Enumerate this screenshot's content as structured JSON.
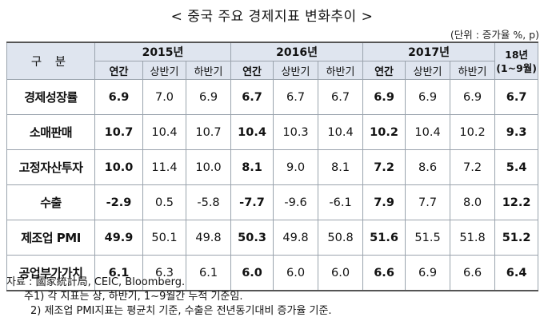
{
  "title": "< 중국 주요 경제지표 변화추이 >",
  "unit": "(단위 : 증가율 %, p)",
  "header": {
    "gubun": "구 분",
    "years": [
      "2015년",
      "2016년",
      "2017년"
    ],
    "ytd_line1": "18년",
    "ytd_line2": "(1~9월)",
    "annual": "연간",
    "h1": "상반기",
    "h2": "하반기"
  },
  "rows": [
    {
      "label": "경제성장률",
      "values": [
        "6.9",
        "7.0",
        "6.9",
        "6.7",
        "6.7",
        "6.7",
        "6.9",
        "6.9",
        "6.9",
        "6.7"
      ]
    },
    {
      "label": "소매판매",
      "values": [
        "10.7",
        "10.4",
        "10.7",
        "10.4",
        "10.3",
        "10.4",
        "10.2",
        "10.4",
        "10.2",
        "9.3"
      ]
    },
    {
      "label": "고정자산투자",
      "values": [
        "10.0",
        "11.4",
        "10.0",
        "8.1",
        "9.0",
        "8.1",
        "7.2",
        "8.6",
        "7.2",
        "5.4"
      ]
    },
    {
      "label": "수출",
      "values": [
        "-2.9",
        "0.5",
        "-5.8",
        "-7.7",
        "-9.6",
        "-6.1",
        "7.9",
        "7.7",
        "8.0",
        "12.2"
      ]
    },
    {
      "label": "제조업 PMI",
      "values": [
        "49.9",
        "50.1",
        "49.8",
        "50.3",
        "49.8",
        "50.8",
        "51.6",
        "51.5",
        "51.8",
        "51.2"
      ]
    },
    {
      "label": "공업부가가치",
      "values": [
        "6.1",
        "6.3",
        "6.1",
        "6.0",
        "6.0",
        "6.0",
        "6.6",
        "6.9",
        "6.6",
        "6.4"
      ]
    }
  ],
  "notes": {
    "source": "자료 : 國家統計局, CEIC, Bloomberg.",
    "note1": "주1) 각 지표는 상, 하반기, 1~9월간 누적 기준임.",
    "note2": "2) 제조업 PMI지표는 평균치 기준, 수출은 전년동기대비 증가율 기준."
  }
}
